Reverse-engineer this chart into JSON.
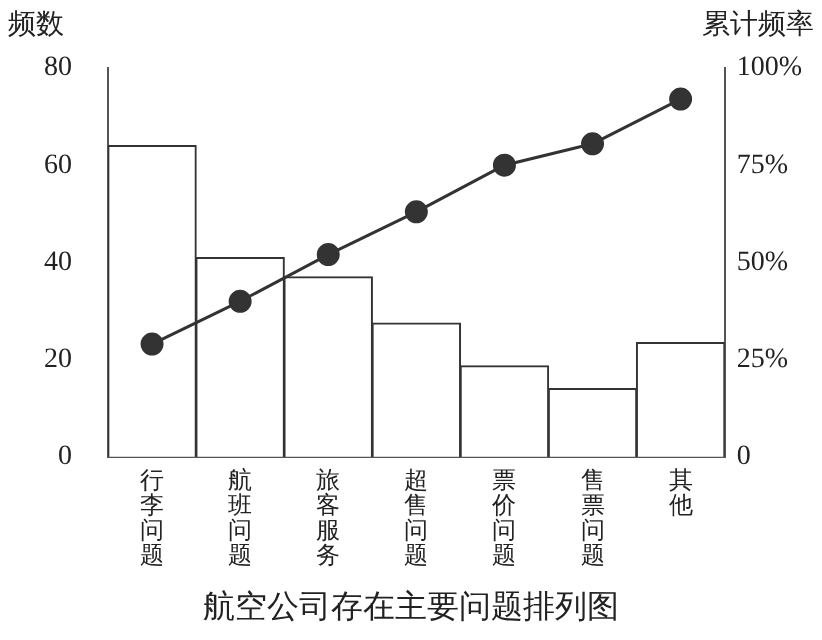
{
  "chart_data": {
    "type": "bar",
    "title": "航空公司存在主要问题排列图",
    "ylabel": "频数",
    "y2label": "累计频率",
    "categories": [
      "行李问题",
      "航班问题",
      "旅客服务",
      "超售问题",
      "票价问题",
      "售票问题",
      "其他"
    ],
    "series": [
      {
        "type": "bar",
        "color": "#ffffff",
        "values": [
          64,
          41,
          37,
          27.5,
          18.7,
          14,
          23.5
        ]
      },
      {
        "type": "line",
        "axis": "y2",
        "color": "#333333",
        "values": [
          29,
          40,
          52,
          63,
          75,
          80.5,
          92
        ],
        "marker": "circle"
      }
    ],
    "ylim": [
      0,
      80
    ],
    "yticks": [
      0,
      20,
      40,
      60,
      80
    ],
    "y2lim": [
      0,
      100
    ],
    "y2ticks": [
      0,
      {
        "value": 25,
        "label": "25%"
      },
      {
        "value": 50,
        "label": "50%"
      },
      {
        "value": 75,
        "label": "75%"
      },
      {
        "value": 100,
        "label": "100%"
      }
    ],
    "grid": false,
    "legend": false
  }
}
